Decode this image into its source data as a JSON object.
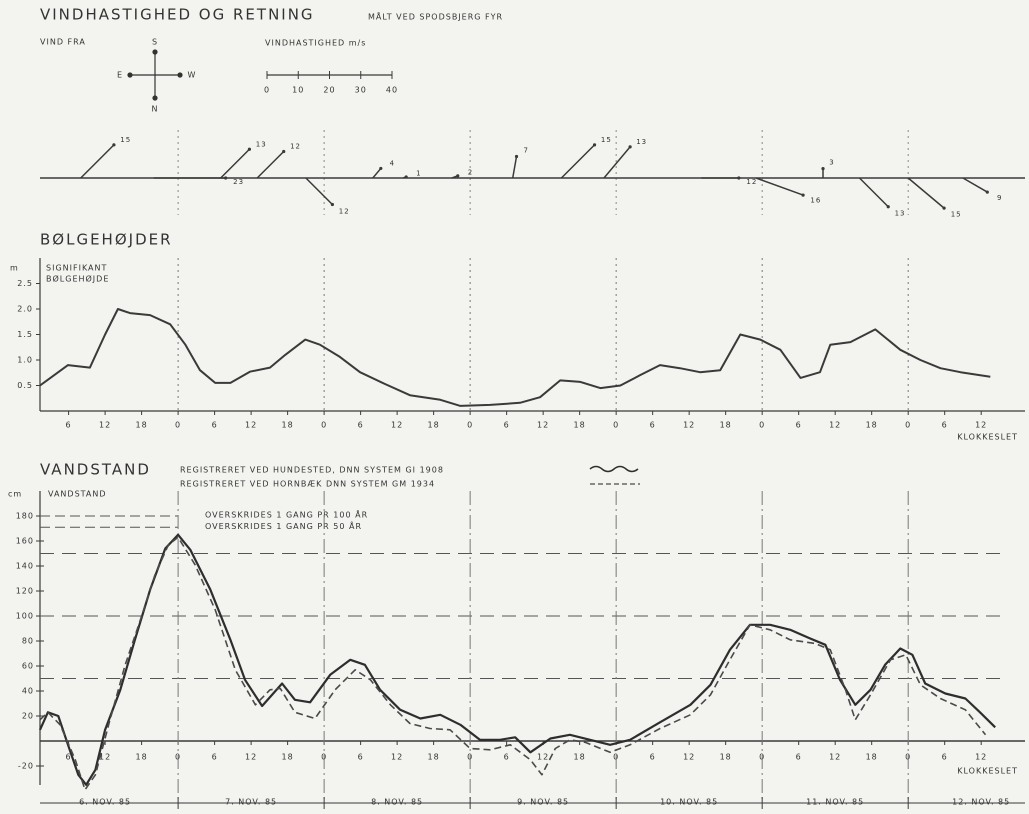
{
  "chart_data": [
    {
      "type": "wind",
      "title": "VINDHASTIGHED OG RETNING",
      "subtitle": "MÅLT VED SPODSBJERG FYR",
      "direction_label": "VIND FRA",
      "compass": {
        "top": "S",
        "left": "E",
        "right": "W",
        "bottom": "N"
      },
      "speed_scale": {
        "label": "VINDHASTIGHED m/s",
        "ticks": [
          0,
          10,
          20,
          30,
          40
        ]
      },
      "xlim": [
        1.3,
        163.2
      ],
      "x": [
        8,
        20,
        31,
        37,
        45,
        56,
        61,
        69,
        79,
        87,
        94,
        110,
        119,
        130,
        136,
        144,
        153
      ],
      "speed": [
        15,
        23,
        13,
        12,
        12,
        4,
        1,
        2,
        7,
        15,
        13,
        12,
        16,
        3,
        13,
        15,
        9
      ],
      "direction": [
        225,
        270,
        225,
        225,
        315,
        220,
        250,
        250,
        190,
        225,
        220,
        270,
        290,
        180,
        315,
        310,
        300
      ],
      "color": "#3a3a3a"
    },
    {
      "type": "line",
      "title": "BØLGEHØJDER",
      "y_label": "m",
      "y_note": [
        "SIGNIFIKANT",
        "BØLGEHØJDE"
      ],
      "x_label": "KLOKKESLET",
      "xlim": [
        1.3,
        163.2
      ],
      "ylim": [
        0,
        3
      ],
      "xticks": [
        6,
        12,
        18,
        {
          "value": 24,
          "label": "0"
        },
        {
          "value": 30,
          "label": "6"
        },
        {
          "value": 36,
          "label": "12"
        },
        {
          "value": 42,
          "label": "18"
        },
        {
          "value": 48,
          "label": "0"
        },
        {
          "value": 54,
          "label": "6"
        },
        {
          "value": 60,
          "label": "12"
        },
        {
          "value": 66,
          "label": "18"
        },
        {
          "value": 72,
          "label": "0"
        },
        {
          "value": 78,
          "label": "6"
        },
        {
          "value": 84,
          "label": "12"
        },
        {
          "value": 90,
          "label": "18"
        },
        {
          "value": 96,
          "label": "0"
        },
        {
          "value": 102,
          "label": "6"
        },
        {
          "value": 108,
          "label": "12"
        },
        {
          "value": 114,
          "label": "18"
        },
        {
          "value": 120,
          "label": "0"
        },
        {
          "value": 126,
          "label": "6"
        },
        {
          "value": 132,
          "label": "12"
        },
        {
          "value": 138,
          "label": "18"
        },
        {
          "value": 144,
          "label": "0"
        },
        {
          "value": 150,
          "label": "6"
        },
        {
          "value": 156,
          "label": "12"
        }
      ],
      "yticks": [
        0.5,
        {
          "value": 1,
          "label": "1.0"
        },
        1.5,
        {
          "value": 2,
          "label": "2.0"
        },
        2.5
      ],
      "color": "#3a3a3a",
      "x": [
        1.3,
        5.9,
        9.5,
        12,
        14.1,
        16.1,
        19.4,
        22.7,
        25.2,
        27.6,
        30.1,
        32.6,
        35.8,
        39.1,
        41.6,
        44.9,
        47.3,
        50.6,
        53.9,
        58,
        62.1,
        67.1,
        70.4,
        75.3,
        80.2,
        83.5,
        86.8,
        90.1,
        93.4,
        96.7,
        99.9,
        103.2,
        106.5,
        109.8,
        113.1,
        116.4,
        119.7,
        123,
        126.3,
        129.5,
        131.2,
        134.5,
        138.6,
        142.7,
        146,
        149.3,
        152.6,
        157.5
      ],
      "values": [
        0.5,
        0.9,
        0.85,
        1.5,
        2.0,
        1.92,
        1.88,
        1.7,
        1.3,
        0.8,
        0.55,
        0.55,
        0.77,
        0.85,
        1.1,
        1.4,
        1.3,
        1.06,
        0.76,
        0.53,
        0.31,
        0.22,
        0.1,
        0.12,
        0.16,
        0.27,
        0.6,
        0.57,
        0.45,
        0.5,
        0.7,
        0.9,
        0.84,
        0.76,
        0.8,
        1.5,
        1.4,
        1.2,
        0.65,
        0.76,
        1.3,
        1.35,
        1.6,
        1.2,
        1.0,
        0.84,
        0.76,
        0.67
      ]
    },
    {
      "type": "multiline",
      "title": "VANDSTAND",
      "y_label": "cm",
      "y_note": [
        "VANDSTAND"
      ],
      "x_label": "KLOKKESLET",
      "xlim": [
        1.3,
        163.2
      ],
      "ylim": [
        -40,
        200
      ],
      "xticks": [
        6,
        12,
        18,
        {
          "value": 24,
          "label": "0"
        },
        {
          "value": 30,
          "label": "6"
        },
        {
          "value": 36,
          "label": "12"
        },
        {
          "value": 42,
          "label": "18"
        },
        {
          "value": 48,
          "label": "0"
        },
        {
          "value": 54,
          "label": "6"
        },
        {
          "value": 60,
          "label": "12"
        },
        {
          "value": 66,
          "label": "18"
        },
        {
          "value": 72,
          "label": "0"
        },
        {
          "value": 78,
          "label": "6"
        },
        {
          "value": 84,
          "label": "12"
        },
        {
          "value": 90,
          "label": "18"
        },
        {
          "value": 96,
          "label": "0"
        },
        {
          "value": 102,
          "label": "6"
        },
        {
          "value": 108,
          "label": "12"
        },
        {
          "value": 114,
          "label": "18"
        },
        {
          "value": 120,
          "label": "0"
        },
        {
          "value": 126,
          "label": "6"
        },
        {
          "value": 132,
          "label": "12"
        },
        {
          "value": 138,
          "label": "18"
        },
        {
          "value": 144,
          "label": "0"
        },
        {
          "value": 150,
          "label": "6"
        },
        {
          "value": 156,
          "label": "12"
        }
      ],
      "yticks": [
        -20,
        20,
        40,
        60,
        80,
        100,
        120,
        140,
        160,
        180
      ],
      "reference_lines": [
        150,
        100,
        50
      ],
      "thresholds": [
        {
          "label": "OVERSKRIDES 1 GANG PR 100 ÅR",
          "value": 180
        },
        {
          "label": "OVERSKRIDES 1 GANG PR 50 ÅR",
          "value": 171
        }
      ],
      "day_labels": [
        "6. NOV. 85",
        "7. NOV. 85",
        "8. NOV. 85",
        "9. NOV. 85",
        "10. NOV. 85",
        "11. NOV. 85",
        "12. NOV. 85"
      ],
      "series": [
        {
          "name": "REGISTRERET VED HUNDESTED, DNN SYSTEM GI 1908",
          "color": "#2e2e2e",
          "dash": "solid",
          "x": [
            1.3,
            2.6,
            4.3,
            5.9,
            7.6,
            8.9,
            10.4,
            12,
            14.5,
            16.9,
            19.4,
            21.9,
            24,
            26,
            29.3,
            32.6,
            35,
            37.8,
            41.1,
            43.2,
            45.7,
            49,
            52.3,
            54.7,
            57.2,
            60.5,
            63.8,
            67.1,
            70.4,
            73.6,
            76.9,
            79.4,
            81.9,
            85.2,
            88.4,
            91.7,
            95,
            98.3,
            103.2,
            108.2,
            111.5,
            114.7,
            118,
            121.3,
            124.6,
            127.9,
            130.4,
            132.8,
            135.3,
            137.8,
            140.2,
            142.7,
            144.7,
            146.8,
            150.1,
            153.4,
            155.8,
            158.3
          ],
          "values": [
            9,
            23,
            20,
            -3,
            -27,
            -35,
            -23,
            9,
            41,
            81,
            121,
            154,
            165,
            153,
            121,
            81,
            49,
            28,
            46,
            33,
            31,
            53,
            65,
            61,
            41,
            25,
            18,
            21,
            13,
            1,
            1,
            3,
            -9,
            2,
            5,
            1,
            -3,
            1,
            15,
            29,
            45,
            73,
            93,
            93,
            89,
            82,
            77,
            49,
            29,
            41,
            61,
            74,
            69,
            46,
            38,
            34,
            23,
            11
          ]
        },
        {
          "name": "REGISTRERET VED HORNBÆK  DNN SYSTEM GM 1934",
          "color": "#4a4a4a",
          "dash": "dashed",
          "x": [
            1.3,
            2.6,
            4.6,
            7.1,
            8.7,
            10.4,
            12.8,
            15.3,
            17.8,
            20.2,
            22.4,
            24,
            26.8,
            30.1,
            33.4,
            36.7,
            39.1,
            40.8,
            43.2,
            46.5,
            49.8,
            53.1,
            55.6,
            58.9,
            62.1,
            65.4,
            68.7,
            72,
            75.3,
            78.6,
            81.9,
            83.8,
            86,
            88.4,
            90.9,
            95,
            98.3,
            103.2,
            108.2,
            111.5,
            114.7,
            118,
            121.3,
            124.6,
            128.7,
            131.2,
            133.7,
            135.3,
            137.8,
            141.1,
            143.6,
            146,
            149.3,
            153.4,
            156.7
          ],
          "values": [
            17,
            23,
            13,
            -15,
            -39,
            -27,
            17,
            61,
            97,
            133,
            157,
            163,
            141,
            105,
            57,
            29,
            41,
            42,
            23,
            18,
            41,
            57,
            49,
            29,
            14,
            10,
            9,
            -6,
            -7,
            -3,
            -15,
            -27,
            -6,
            1,
            -1,
            -9,
            -3,
            10,
            21,
            37,
            65,
            93,
            89,
            81,
            78,
            73,
            41,
            17,
            37,
            65,
            69,
            45,
            34,
            25,
            5
          ]
        }
      ]
    }
  ]
}
